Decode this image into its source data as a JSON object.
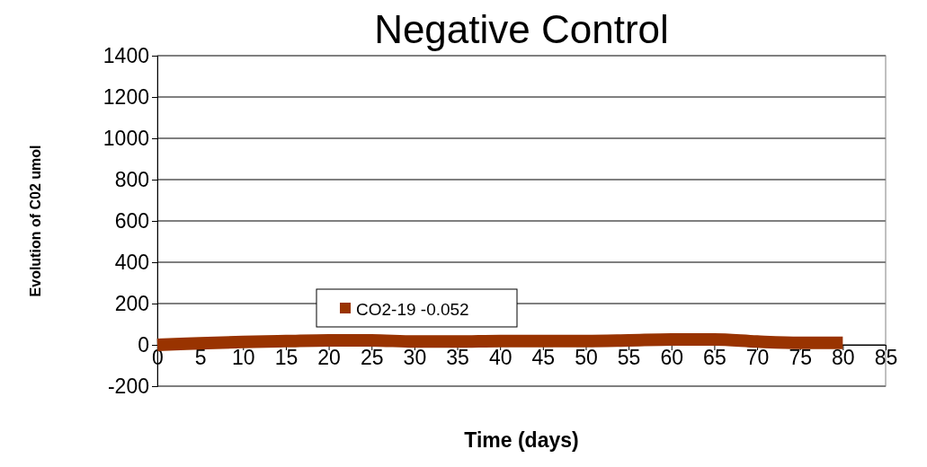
{
  "chart_data": {
    "type": "line",
    "title": "Negative Control",
    "xlabel": "Time (days)",
    "ylabel": "Evolution of C02 umol",
    "xlim": [
      0,
      85
    ],
    "xticks": [
      0,
      5,
      10,
      15,
      20,
      25,
      30,
      35,
      40,
      45,
      50,
      55,
      60,
      65,
      70,
      75,
      80,
      85
    ],
    "ylim": [
      -200,
      1400
    ],
    "yticks": [
      -200,
      0,
      200,
      400,
      600,
      800,
      1000,
      1200,
      1400
    ],
    "grid": "y",
    "legend": "bottom",
    "marker": "none",
    "series": [
      {
        "name": "CO2-19 -0.052",
        "color": "#993300",
        "x": [
          0,
          2,
          5,
          10,
          15,
          20,
          25,
          30,
          35,
          40,
          45,
          50,
          55,
          60,
          65,
          70,
          75,
          80
        ],
        "values": [
          0,
          3,
          8,
          14,
          18,
          22,
          22,
          16,
          16,
          19,
          19,
          19,
          22,
          26,
          26,
          16,
          10,
          10
        ]
      }
    ]
  }
}
